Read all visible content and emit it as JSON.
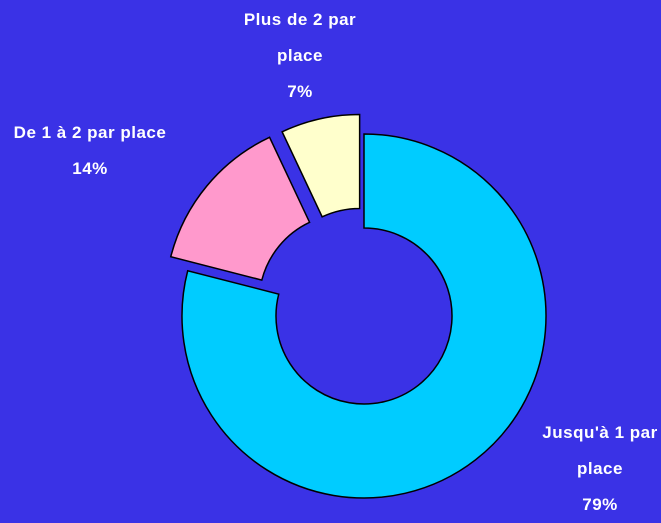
{
  "chart_data": {
    "type": "donut",
    "categories": [
      "Jusqu'à 1 par place",
      "De 1 à 2 par place",
      "Plus de 2 par place"
    ],
    "values": [
      79,
      14,
      7
    ],
    "value_labels": [
      "79%",
      "14%",
      "7%"
    ],
    "colors": [
      "#00ccff",
      "#ff99cc",
      "#ffffcc"
    ]
  }
}
